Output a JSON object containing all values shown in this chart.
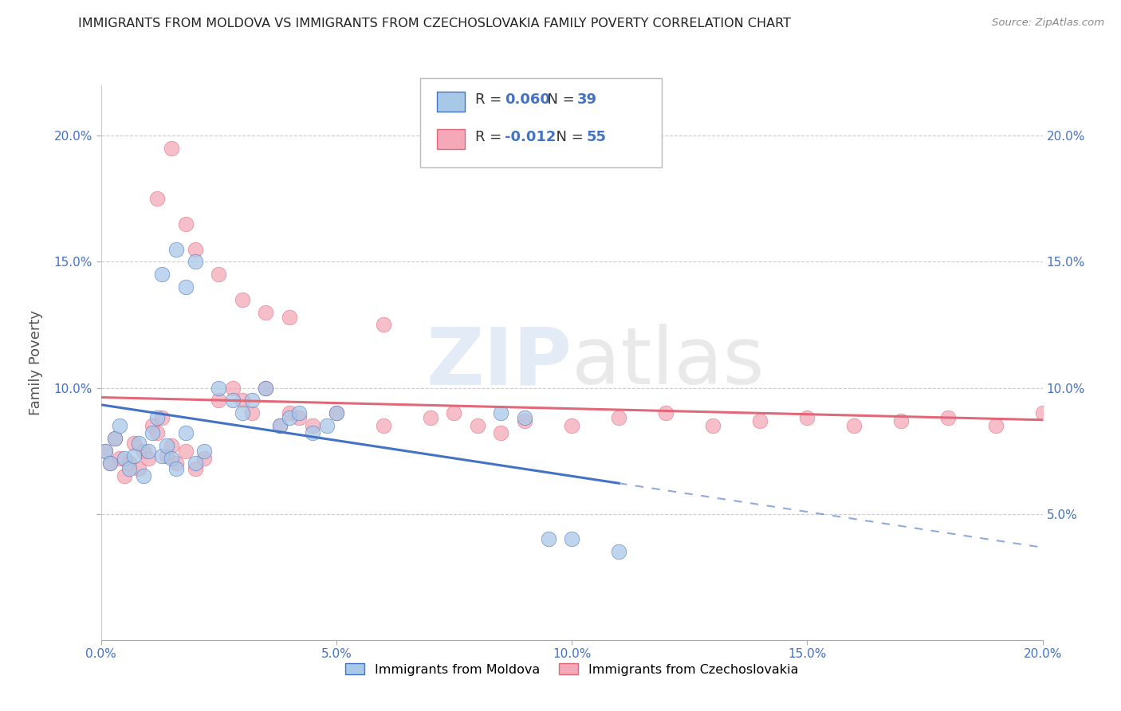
{
  "title": "IMMIGRANTS FROM MOLDOVA VS IMMIGRANTS FROM CZECHOSLOVAKIA FAMILY POVERTY CORRELATION CHART",
  "source": "Source: ZipAtlas.com",
  "ylabel": "Family Poverty",
  "legend_label1": "Immigrants from Moldova",
  "legend_label2": "Immigrants from Czechoslovakia",
  "R1": 0.06,
  "N1": 39,
  "R2": -0.012,
  "N2": 55,
  "color1": "#a8c8e8",
  "color2": "#f4a8b8",
  "line_color1": "#4472c4",
  "line_color2": "#e06878",
  "xlim": [
    0.0,
    0.2
  ],
  "ylim": [
    0.0,
    0.22
  ],
  "xticks": [
    0.0,
    0.05,
    0.1,
    0.15,
    0.2
  ],
  "xtick_labels": [
    "0.0%",
    "5.0%",
    "10.0%",
    "15.0%",
    "20.0%"
  ],
  "ytick_vals": [
    0.05,
    0.1,
    0.15,
    0.2
  ],
  "ytick_labels": [
    "5.0%",
    "10.0%",
    "15.0%",
    "20.0%"
  ],
  "moldova_x": [
    0.001,
    0.002,
    0.003,
    0.004,
    0.005,
    0.006,
    0.007,
    0.008,
    0.009,
    0.01,
    0.011,
    0.012,
    0.013,
    0.014,
    0.015,
    0.016,
    0.018,
    0.02,
    0.022,
    0.025,
    0.028,
    0.03,
    0.032,
    0.035,
    0.038,
    0.04,
    0.042,
    0.045,
    0.048,
    0.05,
    0.013,
    0.016,
    0.018,
    0.02,
    0.085,
    0.09,
    0.095,
    0.1,
    0.11
  ],
  "moldova_y": [
    0.075,
    0.07,
    0.08,
    0.085,
    0.072,
    0.068,
    0.073,
    0.078,
    0.065,
    0.075,
    0.082,
    0.088,
    0.073,
    0.077,
    0.072,
    0.068,
    0.082,
    0.07,
    0.075,
    0.1,
    0.095,
    0.09,
    0.095,
    0.1,
    0.085,
    0.088,
    0.09,
    0.082,
    0.085,
    0.09,
    0.145,
    0.155,
    0.14,
    0.15,
    0.09,
    0.088,
    0.04,
    0.04,
    0.035
  ],
  "czech_x": [
    0.001,
    0.002,
    0.003,
    0.004,
    0.005,
    0.006,
    0.007,
    0.008,
    0.009,
    0.01,
    0.011,
    0.012,
    0.013,
    0.014,
    0.015,
    0.016,
    0.018,
    0.02,
    0.022,
    0.025,
    0.028,
    0.03,
    0.032,
    0.035,
    0.038,
    0.04,
    0.042,
    0.045,
    0.012,
    0.015,
    0.018,
    0.02,
    0.025,
    0.03,
    0.035,
    0.04,
    0.05,
    0.06,
    0.07,
    0.075,
    0.08,
    0.085,
    0.09,
    0.1,
    0.11,
    0.12,
    0.13,
    0.14,
    0.15,
    0.16,
    0.17,
    0.18,
    0.19,
    0.2,
    0.06
  ],
  "czech_y": [
    0.075,
    0.07,
    0.08,
    0.072,
    0.065,
    0.07,
    0.078,
    0.068,
    0.075,
    0.072,
    0.085,
    0.082,
    0.088,
    0.073,
    0.077,
    0.07,
    0.075,
    0.068,
    0.072,
    0.095,
    0.1,
    0.095,
    0.09,
    0.1,
    0.085,
    0.09,
    0.088,
    0.085,
    0.175,
    0.195,
    0.165,
    0.155,
    0.145,
    0.135,
    0.13,
    0.128,
    0.09,
    0.085,
    0.088,
    0.09,
    0.085,
    0.082,
    0.087,
    0.085,
    0.088,
    0.09,
    0.085,
    0.087,
    0.088,
    0.085,
    0.087,
    0.088,
    0.085,
    0.09,
    0.125
  ]
}
